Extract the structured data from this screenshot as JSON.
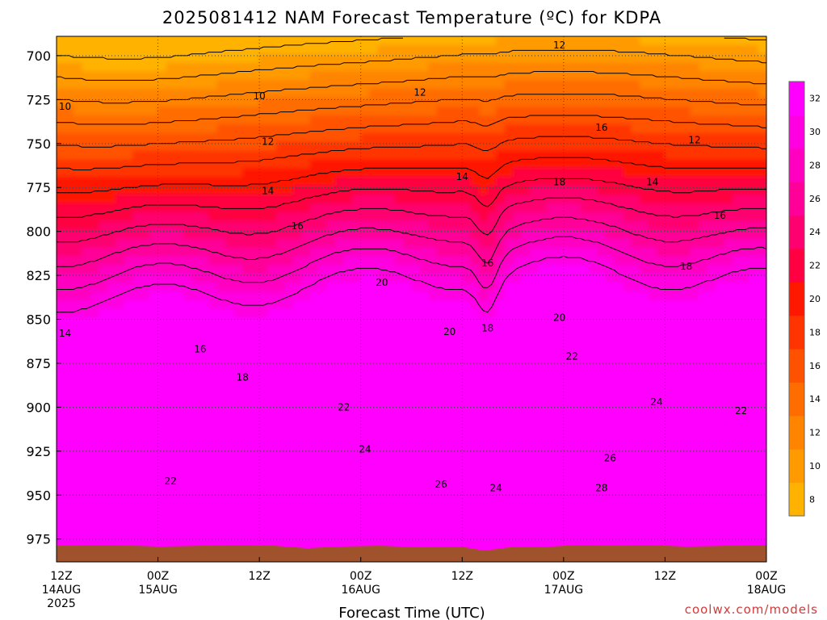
{
  "chart_data": {
    "type": "heatmap",
    "title": "2025081412 NAM Forecast Temperature (ºC) for KDPA",
    "xlabel": "Forecast Time (UTC)",
    "ylabel": "",
    "x_ticks": [
      {
        "hour": 0,
        "line1": "12Z",
        "line2": "14AUG",
        "line3": "2025"
      },
      {
        "hour": 12,
        "line1": "00Z",
        "line2": "15AUG",
        "line3": ""
      },
      {
        "hour": 24,
        "line1": "12Z",
        "line2": "",
        "line3": ""
      },
      {
        "hour": 36,
        "line1": "00Z",
        "line2": "16AUG",
        "line3": ""
      },
      {
        "hour": 48,
        "line1": "12Z",
        "line2": "",
        "line3": ""
      },
      {
        "hour": 60,
        "line1": "00Z",
        "line2": "17AUG",
        "line3": ""
      },
      {
        "hour": 72,
        "line1": "12Z",
        "line2": "",
        "line3": ""
      },
      {
        "hour": 84,
        "line1": "00Z",
        "line2": "18AUG",
        "line3": ""
      }
    ],
    "y_ticks": [
      "700",
      "725",
      "750",
      "775",
      "800",
      "825",
      "850",
      "875",
      "900",
      "925",
      "950",
      "975"
    ],
    "xlim": [
      0,
      84
    ],
    "ylim": [
      988,
      689
    ],
    "grid": true,
    "colorbar": {
      "ticks": [
        "8",
        "10",
        "12",
        "14",
        "16",
        "18",
        "20",
        "22",
        "24",
        "26",
        "28",
        "30",
        "32"
      ],
      "levels": [
        7,
        9,
        11,
        13,
        15,
        17,
        19,
        21,
        23,
        25,
        27,
        29,
        31,
        33
      ],
      "colors": [
        "#ffb200",
        "#ff9a00",
        "#ff8400",
        "#ff6c00",
        "#ff5200",
        "#ff3400",
        "#ff1800",
        "#ff0040",
        "#ff0070",
        "#ff0098",
        "#ff00c0",
        "#ff00e0",
        "#ff00ff"
      ]
    },
    "contour_labels": [
      {
        "text": "10",
        "hour": 1.0,
        "pressure": 729
      },
      {
        "text": "10",
        "hour": 24.0,
        "pressure": 723
      },
      {
        "text": "12",
        "hour": 25.0,
        "pressure": 749
      },
      {
        "text": "12",
        "hour": 43.0,
        "pressure": 721
      },
      {
        "text": "12",
        "hour": 59.5,
        "pressure": 694
      },
      {
        "text": "12",
        "hour": 75.5,
        "pressure": 748
      },
      {
        "text": "14",
        "hour": 25.0,
        "pressure": 777
      },
      {
        "text": "14",
        "hour": 48.0,
        "pressure": 769
      },
      {
        "text": "14",
        "hour": 70.5,
        "pressure": 772
      },
      {
        "text": "14",
        "hour": 1.0,
        "pressure": 858
      },
      {
        "text": "16",
        "hour": 28.5,
        "pressure": 797
      },
      {
        "text": "16",
        "hour": 51.0,
        "pressure": 818
      },
      {
        "text": "16",
        "hour": 64.5,
        "pressure": 741
      },
      {
        "text": "16",
        "hour": 78.5,
        "pressure": 791
      },
      {
        "text": "16",
        "hour": 17.0,
        "pressure": 867
      },
      {
        "text": "18",
        "hour": 59.5,
        "pressure": 772
      },
      {
        "text": "18",
        "hour": 74.5,
        "pressure": 820
      },
      {
        "text": "18",
        "hour": 51.0,
        "pressure": 855
      },
      {
        "text": "18",
        "hour": 22.0,
        "pressure": 883
      },
      {
        "text": "20",
        "hour": 38.5,
        "pressure": 829
      },
      {
        "text": "20",
        "hour": 46.5,
        "pressure": 857
      },
      {
        "text": "20",
        "hour": 59.5,
        "pressure": 849
      },
      {
        "text": "22",
        "hour": 61.0,
        "pressure": 871
      },
      {
        "text": "22",
        "hour": 34.0,
        "pressure": 900
      },
      {
        "text": "22",
        "hour": 13.5,
        "pressure": 942
      },
      {
        "text": "22",
        "hour": 81.0,
        "pressure": 902
      },
      {
        "text": "24",
        "hour": 71.0,
        "pressure": 897
      },
      {
        "text": "24",
        "hour": 36.5,
        "pressure": 924
      },
      {
        "text": "24",
        "hour": 52.0,
        "pressure": 946
      },
      {
        "text": "26",
        "hour": 45.5,
        "pressure": 944
      },
      {
        "text": "26",
        "hour": 65.5,
        "pressure": 929
      },
      {
        "text": "28",
        "hour": 64.5,
        "pressure": 946
      }
    ]
  },
  "credit": "coolwx.com/models"
}
